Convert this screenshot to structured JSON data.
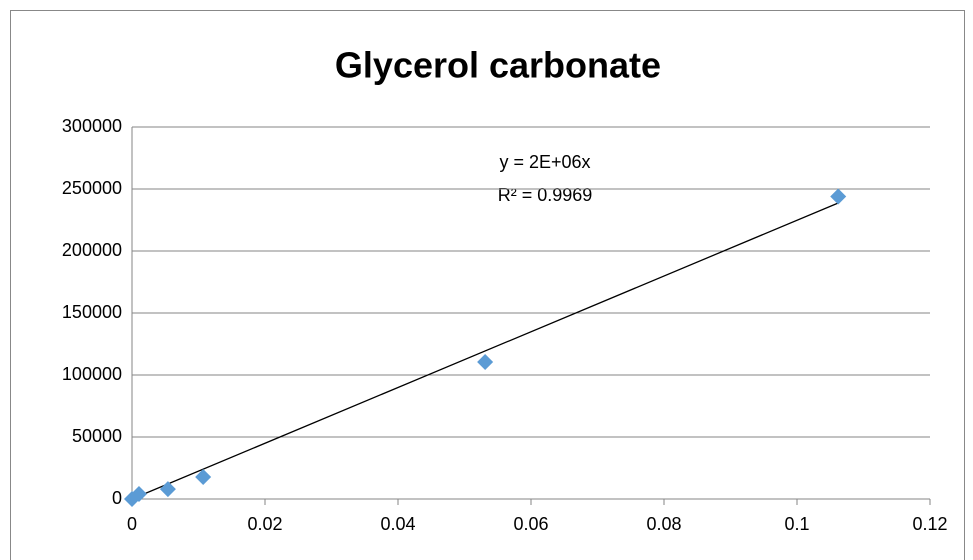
{
  "chart_data": {
    "type": "scatter",
    "title": "Glycerol carbonate",
    "series": [
      {
        "color": "#5b9bd5",
        "x": [
          0,
          0.00105,
          0.0054,
          0.0107,
          0.0531,
          0.1062
        ],
        "values": [
          0,
          4000,
          8000,
          17700,
          110500,
          244000
        ]
      }
    ],
    "trendline": {
      "equation": "y = 2E+06x",
      "r_squared": "R² = 0.9969",
      "color": "#000000"
    },
    "xlim": [
      0,
      0.12
    ],
    "xticks": [
      0,
      0.02,
      0.04,
      0.06,
      0.08,
      0.1,
      0.12
    ],
    "ylim": [
      0,
      300000
    ],
    "yticks": [
      0,
      50000,
      100000,
      150000,
      200000,
      250000,
      300000
    ],
    "grid": true
  }
}
